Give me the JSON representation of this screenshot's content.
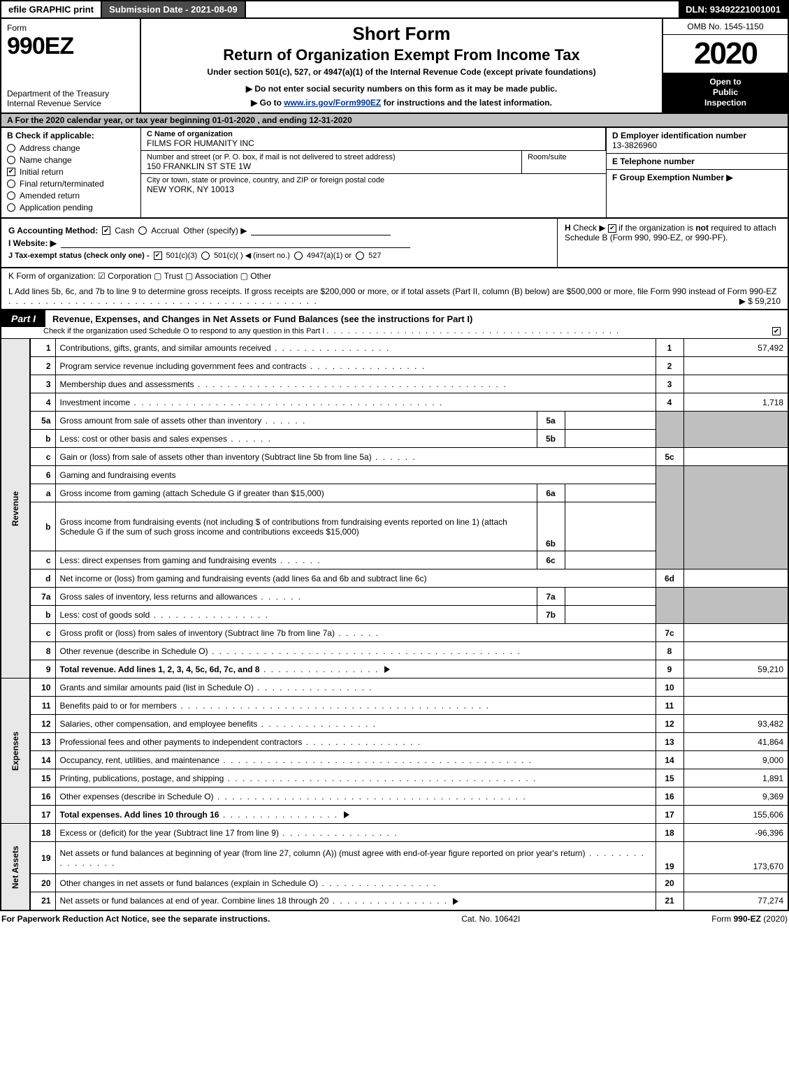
{
  "topbar": {
    "efile": "efile GRAPHIC print",
    "submission": "Submission Date - 2021-08-09",
    "dln": "DLN: 93492221001001"
  },
  "header": {
    "form_word": "Form",
    "form_no": "990EZ",
    "dept1": "Department of the Treasury",
    "dept2": "Internal Revenue Service",
    "title1": "Short Form",
    "title2": "Return of Organization Exempt From Income Tax",
    "subtitle": "Under section 501(c), 527, or 4947(a)(1) of the Internal Revenue Code (except private foundations)",
    "note": "▶ Do not enter social security numbers on this form as it may be made public.",
    "link_pre": "▶ Go to ",
    "link_url": "www.irs.gov/Form990EZ",
    "link_post": " for instructions and the latest information.",
    "omb": "OMB No. 1545-1150",
    "year": "2020",
    "inspection1": "Open to",
    "inspection2": "Public",
    "inspection3": "Inspection"
  },
  "row_a": "A  For the 2020 calendar year, or tax year beginning 01-01-2020 , and ending 12-31-2020",
  "col_b": {
    "hdr": "B  Check if applicable:",
    "items": [
      {
        "label": "Address change",
        "checked": false,
        "round": true
      },
      {
        "label": "Name change",
        "checked": false,
        "round": true
      },
      {
        "label": "Initial return",
        "checked": true,
        "round": false
      },
      {
        "label": "Final return/terminated",
        "checked": false,
        "round": true
      },
      {
        "label": "Amended return",
        "checked": false,
        "round": true
      },
      {
        "label": "Application pending",
        "checked": false,
        "round": true
      }
    ]
  },
  "col_c": {
    "name_lbl": "C Name of organization",
    "name_val": "FILMS FOR HUMANITY INC",
    "addr_lbl": "Number and street (or P. O. box, if mail is not delivered to street address)",
    "addr_val": "150 FRANKLIN ST STE 1W",
    "room_lbl": "Room/suite",
    "city_lbl": "City or town, state or province, country, and ZIP or foreign postal code",
    "city_val": "NEW YORK, NY  10013"
  },
  "col_def": {
    "d_lbl": "D Employer identification number",
    "d_val": "13-3826960",
    "e_lbl": "E Telephone number",
    "f_lbl": "F Group Exemption Number   ▶"
  },
  "gh": {
    "g_lbl": "G Accounting Method:",
    "g_cash": "Cash",
    "g_accrual": "Accrual",
    "g_other": "Other (specify) ▶",
    "i_lbl": "I Website: ▶",
    "j_lbl": "J Tax-exempt status (check only one) -",
    "j_1": "501(c)(3)",
    "j_2": "501(c)(  ) ◀ (insert no.)",
    "j_3": "4947(a)(1) or",
    "j_4": "527",
    "h_text": "H  Check ▶     if the organization is not required to attach Schedule B (Form 990, 990-EZ, or 990-PF)."
  },
  "row_k": "K Form of organization:    ☑ Corporation   ▢ Trust   ▢ Association   ▢ Other",
  "row_l": {
    "text": "L Add lines 5b, 6c, and 7b to line 9 to determine gross receipts. If gross receipts are $200,000 or more, or if total assets (Part II, column (B) below) are $500,000 or more, file Form 990 instead of Form 990-EZ",
    "amt": "▶ $ 59,210"
  },
  "part1": {
    "tag": "Part I",
    "title": "Revenue, Expenses, and Changes in Net Assets or Fund Balances (see the instructions for Part I)",
    "sub": "Check if the organization used Schedule O to respond to any question in this Part I"
  },
  "sections": {
    "revenue": "Revenue",
    "expenses": "Expenses",
    "netassets": "Net Assets"
  },
  "lines": {
    "l1": {
      "n": "1",
      "t": "Contributions, gifts, grants, and similar amounts received",
      "num": "1",
      "amt": "57,492"
    },
    "l2": {
      "n": "2",
      "t": "Program service revenue including government fees and contracts",
      "num": "2",
      "amt": ""
    },
    "l3": {
      "n": "3",
      "t": "Membership dues and assessments",
      "num": "3",
      "amt": ""
    },
    "l4": {
      "n": "4",
      "t": "Investment income",
      "num": "4",
      "amt": "1,718"
    },
    "l5a": {
      "n": "5a",
      "t": "Gross amount from sale of assets other than inventory",
      "sub": "5a"
    },
    "l5b": {
      "n": "b",
      "t": "Less: cost or other basis and sales expenses",
      "sub": "5b"
    },
    "l5c": {
      "n": "c",
      "t": "Gain or (loss) from sale of assets other than inventory (Subtract line 5b from line 5a)",
      "num": "5c",
      "amt": ""
    },
    "l6": {
      "n": "6",
      "t": "Gaming and fundraising events"
    },
    "l6a": {
      "n": "a",
      "t": "Gross income from gaming (attach Schedule G if greater than $15,000)",
      "sub": "6a"
    },
    "l6b": {
      "n": "b",
      "t": "Gross income from fundraising events (not including $                   of contributions from fundraising events reported on line 1) (attach Schedule G if the sum of such gross income and contributions exceeds $15,000)",
      "sub": "6b"
    },
    "l6c": {
      "n": "c",
      "t": "Less: direct expenses from gaming and fundraising events",
      "sub": "6c"
    },
    "l6d": {
      "n": "d",
      "t": "Net income or (loss) from gaming and fundraising events (add lines 6a and 6b and subtract line 6c)",
      "num": "6d",
      "amt": ""
    },
    "l7a": {
      "n": "7a",
      "t": "Gross sales of inventory, less returns and allowances",
      "sub": "7a"
    },
    "l7b": {
      "n": "b",
      "t": "Less: cost of goods sold",
      "sub": "7b"
    },
    "l7c": {
      "n": "c",
      "t": "Gross profit or (loss) from sales of inventory (Subtract line 7b from line 7a)",
      "num": "7c",
      "amt": ""
    },
    "l8": {
      "n": "8",
      "t": "Other revenue (describe in Schedule O)",
      "num": "8",
      "amt": ""
    },
    "l9": {
      "n": "9",
      "t": "Total revenue. Add lines 1, 2, 3, 4, 5c, 6d, 7c, and 8",
      "num": "9",
      "amt": "59,210",
      "bold": true
    },
    "l10": {
      "n": "10",
      "t": "Grants and similar amounts paid (list in Schedule O)",
      "num": "10",
      "amt": ""
    },
    "l11": {
      "n": "11",
      "t": "Benefits paid to or for members",
      "num": "11",
      "amt": ""
    },
    "l12": {
      "n": "12",
      "t": "Salaries, other compensation, and employee benefits",
      "num": "12",
      "amt": "93,482"
    },
    "l13": {
      "n": "13",
      "t": "Professional fees and other payments to independent contractors",
      "num": "13",
      "amt": "41,864"
    },
    "l14": {
      "n": "14",
      "t": "Occupancy, rent, utilities, and maintenance",
      "num": "14",
      "amt": "9,000"
    },
    "l15": {
      "n": "15",
      "t": "Printing, publications, postage, and shipping",
      "num": "15",
      "amt": "1,891"
    },
    "l16": {
      "n": "16",
      "t": "Other expenses (describe in Schedule O)",
      "num": "16",
      "amt": "9,369"
    },
    "l17": {
      "n": "17",
      "t": "Total expenses. Add lines 10 through 16",
      "num": "17",
      "amt": "155,606",
      "bold": true
    },
    "l18": {
      "n": "18",
      "t": "Excess or (deficit) for the year (Subtract line 17 from line 9)",
      "num": "18",
      "amt": "-96,396"
    },
    "l19": {
      "n": "19",
      "t": "Net assets or fund balances at beginning of year (from line 27, column (A)) (must agree with end-of-year figure reported on prior year's return)",
      "num": "19",
      "amt": "173,670"
    },
    "l20": {
      "n": "20",
      "t": "Other changes in net assets or fund balances (explain in Schedule O)",
      "num": "20",
      "amt": ""
    },
    "l21": {
      "n": "21",
      "t": "Net assets or fund balances at end of year. Combine lines 18 through 20",
      "num": "21",
      "amt": "77,274"
    }
  },
  "footer": {
    "left": "For Paperwork Reduction Act Notice, see the separate instructions.",
    "mid": "Cat. No. 10642I",
    "right": "Form 990-EZ (2020)"
  },
  "colors": {
    "black": "#000000",
    "grey_bg": "#bfbfbf",
    "darkbar": "#4a4a4a",
    "link": "#003399"
  }
}
